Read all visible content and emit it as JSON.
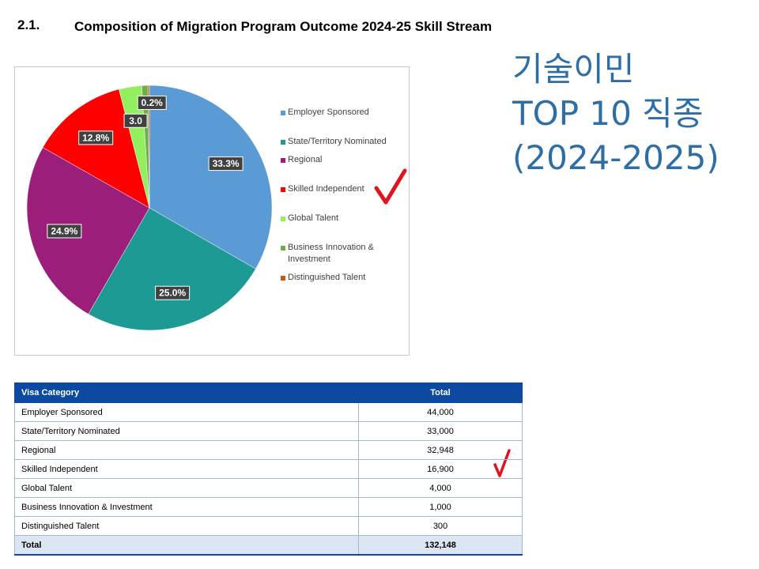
{
  "section": {
    "number": "2.1.",
    "title": "Composition of Migration Program Outcome 2024-25 Skill Stream"
  },
  "chart_data": {
    "type": "pie",
    "title": "",
    "categories": [
      "Employer Sponsored",
      "State/Territory Nominated",
      "Regional",
      "Skilled Independent",
      "Global Talent",
      "Business Innovation & Investment",
      "Distinguished Talent"
    ],
    "values": [
      33.3,
      25.0,
      24.9,
      12.8,
      3.0,
      0.8,
      0.2
    ],
    "labels": [
      "33.3%",
      "25.0%",
      "24.9%",
      "12.8%",
      "3.0",
      "",
      "0.2%"
    ],
    "colors": [
      "#5b9bd5",
      "#1e9a95",
      "#9b1f7a",
      "#ff0000",
      "#92f060",
      "#70ad47",
      "#c55a11"
    ],
    "legend_position": "right"
  },
  "annotation": {
    "lines": [
      "기술이민",
      "TOP 10 직종",
      "(2024-2025)"
    ],
    "color": "#2e6ea6"
  },
  "table": {
    "headers": [
      "Visa Category",
      "Total"
    ],
    "rows": [
      [
        "Employer Sponsored",
        "44,000"
      ],
      [
        "State/Territory Nominated",
        "33,000"
      ],
      [
        "Regional",
        "32,948"
      ],
      [
        "Skilled Independent",
        "16,900"
      ],
      [
        "Global Talent",
        "4,000"
      ],
      [
        "Business Innovation & Investment",
        "1,000"
      ],
      [
        "Distinguished Talent",
        "300"
      ]
    ],
    "total_row": [
      "Total",
      "132,148"
    ],
    "header_color": "#0b4aa0"
  },
  "marks": {
    "checkmark_color": "#e0141e"
  }
}
